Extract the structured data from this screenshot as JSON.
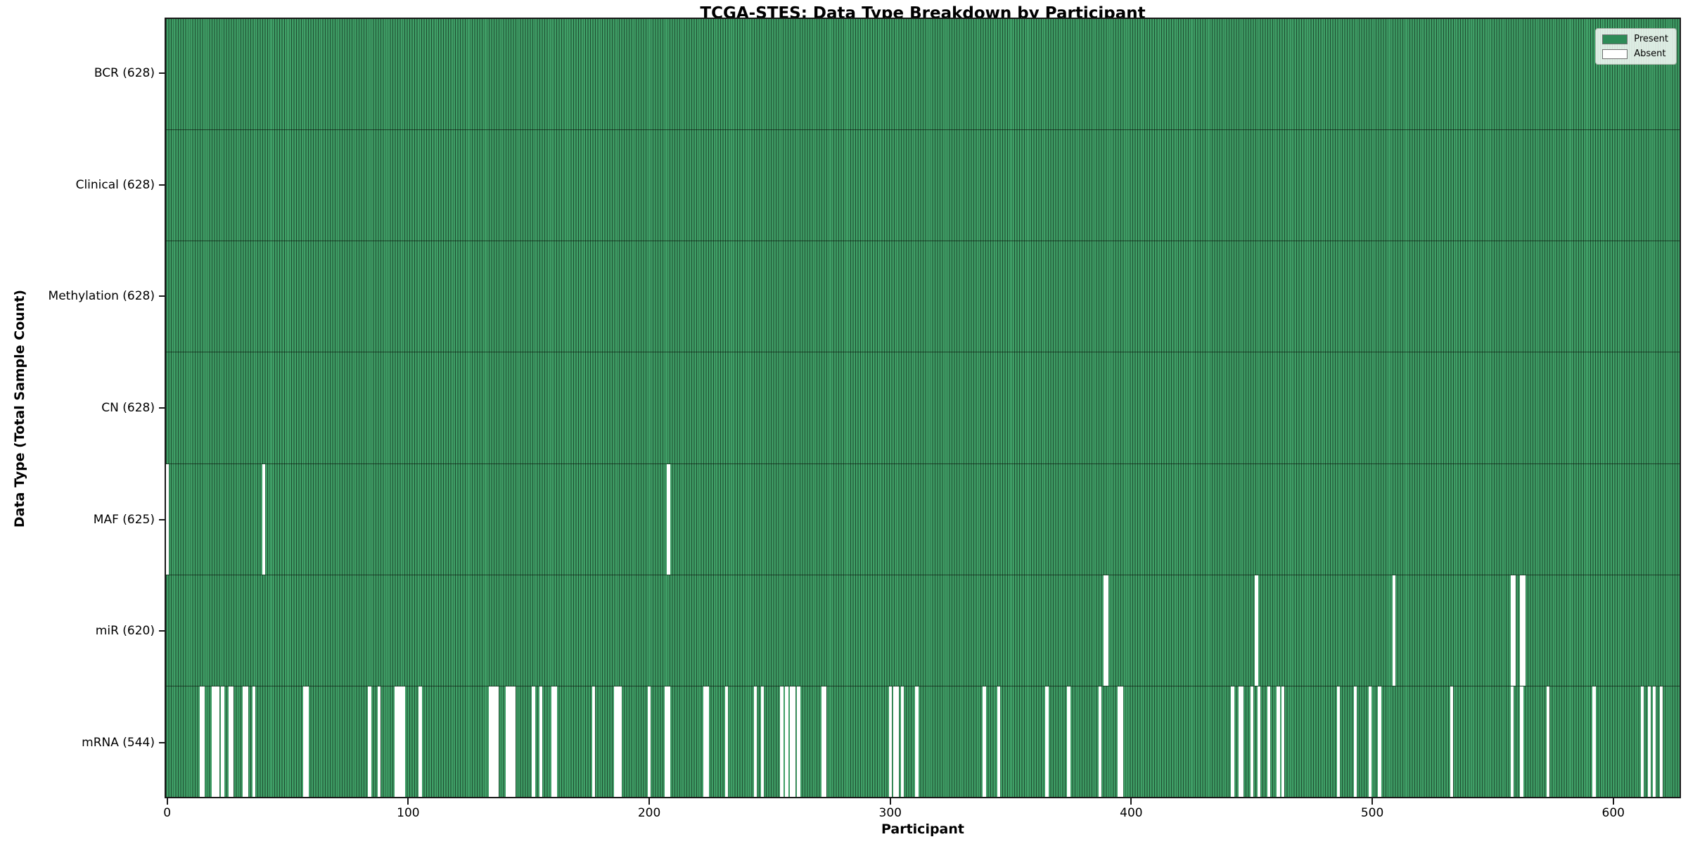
{
  "chart_data": {
    "type": "heatmap",
    "title": "TCGA-STES: Data Type Breakdown by Participant",
    "xlabel": "Participant",
    "ylabel": "Data Type (Total Sample Count)",
    "n_participants": 628,
    "x_ticks": [
      0,
      100,
      200,
      300,
      400,
      500,
      600
    ],
    "grid": false,
    "legend_position": "upper-right",
    "legend": [
      {
        "label": "Present",
        "color": "#2e8b57"
      },
      {
        "label": "Absent",
        "color": "#ffffff"
      }
    ],
    "colors": {
      "present_fill": "#3f9e66",
      "present_edge": "#1d4a2f",
      "absent_fill": "#ffffff",
      "axis": "#1a1a1a"
    },
    "rows": [
      {
        "name": "BCR",
        "label": "BCR (628)",
        "present_count": 628,
        "absent_participants": []
      },
      {
        "name": "Clinical",
        "label": "Clinical (628)",
        "present_count": 628,
        "absent_participants": []
      },
      {
        "name": "Methylation",
        "label": "Methylation (628)",
        "present_count": 628,
        "absent_participants": []
      },
      {
        "name": "CN",
        "label": "CN (628)",
        "present_count": 628,
        "absent_participants": []
      },
      {
        "name": "MAF",
        "label": "MAF (625)",
        "present_count": 625,
        "absent_participants": [
          0,
          40,
          208
        ]
      },
      {
        "name": "miR",
        "label": "miR (620)",
        "present_count": 620,
        "absent_participants": [
          389,
          390,
          452,
          509,
          558,
          559,
          562,
          563
        ]
      },
      {
        "name": "mRNA",
        "label": "mRNA (544)",
        "present_count": 544,
        "absent_participants": [
          14,
          15,
          19,
          20,
          21,
          23,
          26,
          27,
          32,
          33,
          36,
          57,
          58,
          84,
          88,
          95,
          96,
          97,
          98,
          105,
          134,
          135,
          136,
          137,
          141,
          142,
          143,
          144,
          152,
          155,
          160,
          161,
          177,
          186,
          187,
          188,
          200,
          207,
          208,
          223,
          224,
          232,
          244,
          247,
          255,
          257,
          259,
          260,
          262,
          272,
          273,
          300,
          302,
          303,
          305,
          311,
          339,
          345,
          365,
          374,
          387,
          395,
          396,
          442,
          445,
          446,
          450,
          453,
          457,
          461,
          463,
          486,
          493,
          499,
          503,
          533,
          558,
          562,
          573,
          592,
          612,
          615,
          617,
          620
        ]
      }
    ]
  }
}
